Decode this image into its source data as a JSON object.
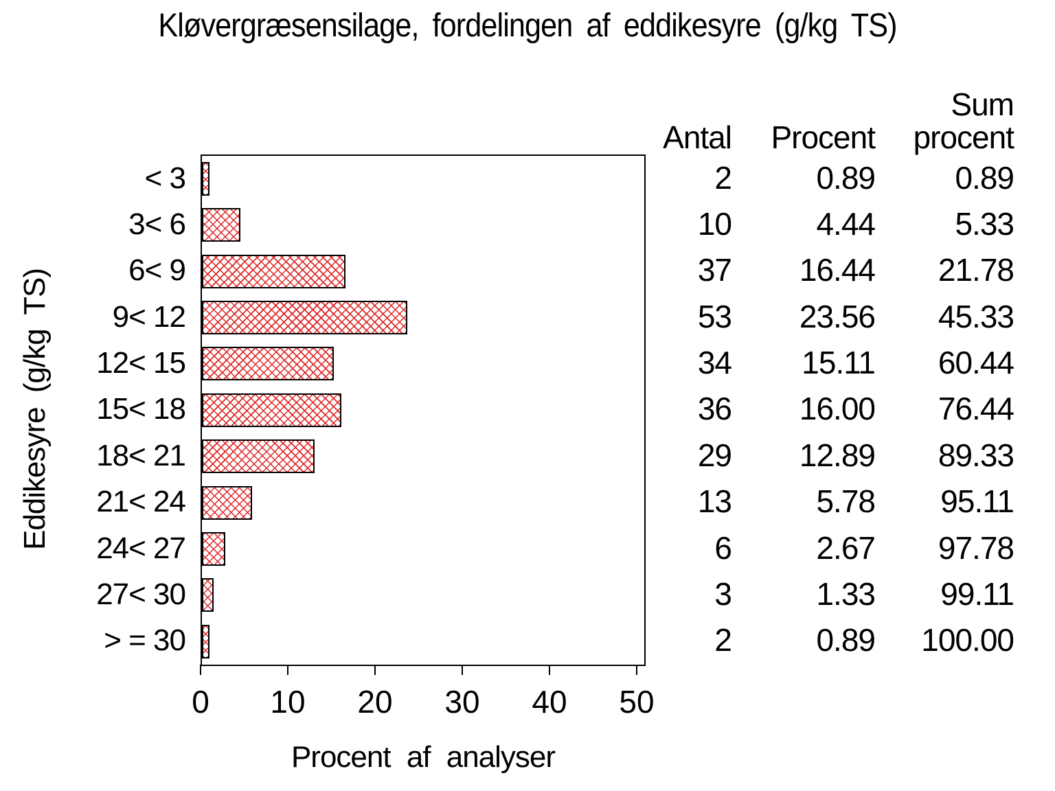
{
  "title": "Kløvergræsensilage, fordelingen af eddikesyre (g/kg TS)",
  "chart_data": {
    "type": "bar",
    "orientation": "horizontal",
    "title": "Kløvergræsensilage, fordelingen af eddikesyre (g/kg TS)",
    "xlabel": "Procent af analyser",
    "ylabel": "Eddikesyre (g/kg TS)",
    "xlim": [
      0,
      50
    ],
    "x_ticks": [
      0,
      10,
      20,
      30,
      40,
      50
    ],
    "grid": false,
    "categories": [
      "< 3",
      "3< 6",
      "6< 9",
      "9< 12",
      "12< 15",
      "15< 18",
      "18< 21",
      "21< 24",
      "24< 27",
      "27< 30",
      "> = 30"
    ],
    "values": [
      0.89,
      4.44,
      16.44,
      23.56,
      15.11,
      16.0,
      12.89,
      5.78,
      2.67,
      1.33,
      0.89
    ],
    "bar_style": {
      "hatch": "diagonal-cross",
      "hatch_color": "#dd2222",
      "border_color": "#000000",
      "fill": "#ffffff"
    }
  },
  "table": {
    "header": {
      "antal": "Antal",
      "procent": "Procent",
      "sum_line1": "Sum",
      "sum_line2": "procent"
    },
    "rows": [
      {
        "antal": "2",
        "procent": "0.89",
        "sum": "0.89"
      },
      {
        "antal": "10",
        "procent": "4.44",
        "sum": "5.33"
      },
      {
        "antal": "37",
        "procent": "16.44",
        "sum": "21.78"
      },
      {
        "antal": "53",
        "procent": "23.56",
        "sum": "45.33"
      },
      {
        "antal": "34",
        "procent": "15.11",
        "sum": "60.44"
      },
      {
        "antal": "36",
        "procent": "16.00",
        "sum": "76.44"
      },
      {
        "antal": "29",
        "procent": "12.89",
        "sum": "89.33"
      },
      {
        "antal": "13",
        "procent": "5.78",
        "sum": "95.11"
      },
      {
        "antal": "6",
        "procent": "2.67",
        "sum": "97.78"
      },
      {
        "antal": "3",
        "procent": "1.33",
        "sum": "99.11"
      },
      {
        "antal": "2",
        "procent": "0.89",
        "sum": "100.00"
      }
    ]
  }
}
